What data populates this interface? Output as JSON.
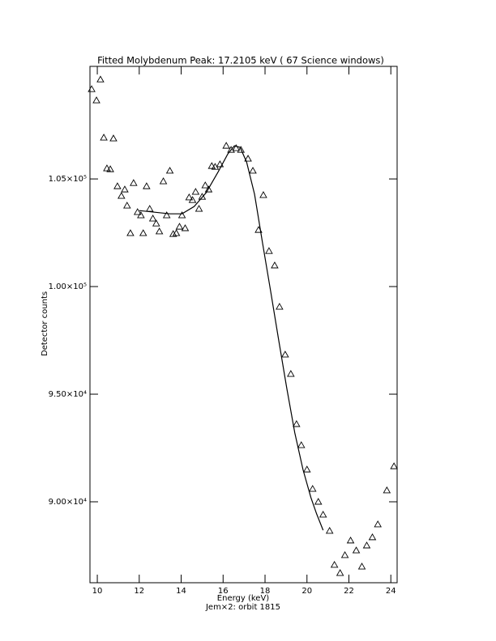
{
  "chart_data": {
    "type": "scatter",
    "title": "Fitted Molybdenum Peak:      17.2105 keV (      67 Science windows)",
    "xlabel": "Energy (keV)",
    "subtitle": "Jem×2: orbit 1815",
    "ylabel": "Detector counts",
    "xlim": [
      9.65,
      24.3
    ],
    "ylim": [
      86240,
      110230
    ],
    "xticks": [
      10,
      12,
      14,
      16,
      18,
      20,
      22,
      24
    ],
    "yticks": [
      {
        "value": 90000,
        "label": "9.00×10⁴"
      },
      {
        "value": 95000,
        "label": "9.50×10⁴"
      },
      {
        "value": 100000,
        "label": "1.00×10⁵"
      },
      {
        "value": 105000,
        "label": "1.05×10⁵"
      }
    ],
    "series": [
      {
        "type": "scatter",
        "color": "#000000",
        "x": [
          9.73,
          9.96,
          10.15,
          10.31,
          10.46,
          10.62,
          10.77,
          10.96,
          11.15,
          11.31,
          11.42,
          11.58,
          11.73,
          11.92,
          12.08,
          12.19,
          12.35,
          12.5,
          12.65,
          12.81,
          12.96,
          13.15,
          13.31,
          13.46,
          13.62,
          13.77,
          13.92,
          14.04,
          14.19,
          14.38,
          14.54,
          14.69,
          14.85,
          15.0,
          15.15,
          15.31,
          15.46,
          15.62,
          15.85,
          16.15,
          16.38,
          16.62,
          16.85,
          17.19,
          17.42,
          17.69,
          17.92,
          18.19,
          18.46,
          18.69,
          18.96,
          19.23,
          19.5,
          19.73,
          20.0,
          20.27,
          20.54,
          20.77,
          21.08,
          21.31,
          21.58,
          21.81,
          22.08,
          22.35,
          22.62,
          22.85,
          23.12,
          23.38,
          23.81,
          24.15
        ],
        "values": [
          109170,
          108650,
          109620,
          106920,
          105490,
          105450,
          106880,
          104660,
          104210,
          104510,
          103760,
          102480,
          104810,
          103460,
          103310,
          102480,
          104660,
          103610,
          103160,
          102930,
          102560,
          104890,
          103310,
          105380,
          102440,
          102480,
          102780,
          103310,
          102710,
          104140,
          104020,
          104400,
          103610,
          104170,
          104700,
          104510,
          105600,
          105560,
          105680,
          106540,
          106350,
          106430,
          106350,
          105940,
          105380,
          102630,
          104250,
          101650,
          100980,
          99060,
          96840,
          95940,
          93610,
          92630,
          91500,
          90600,
          90000,
          89400,
          88650,
          87070,
          86690,
          87520,
          88200,
          87740,
          86990,
          87970,
          88350,
          88950,
          90530,
          91650
        ]
      },
      {
        "type": "line",
        "color": "#000000",
        "x": [
          12.0,
          12.69,
          13.46,
          14.04,
          14.62,
          15.19,
          15.77,
          16.23,
          16.54,
          16.81,
          17.12,
          17.5,
          17.88,
          18.27,
          18.65,
          19.04,
          19.42,
          19.81,
          20.19,
          20.46,
          20.77
        ],
        "values": [
          103530,
          103460,
          103380,
          103380,
          103720,
          104360,
          105340,
          106170,
          106540,
          106470,
          105790,
          104290,
          102030,
          99770,
          97520,
          95260,
          93200,
          91500,
          90190,
          89440,
          88680
        ]
      }
    ]
  }
}
